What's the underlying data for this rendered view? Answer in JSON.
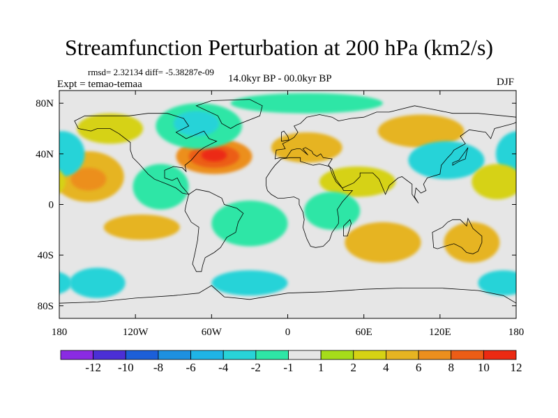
{
  "colors": {
    "background": "#ffffff",
    "map_neutral": "#e6e6e6",
    "coast": "#000000",
    "palette": [
      "#8a2be2",
      "#4b2fd6",
      "#1c5fd8",
      "#1e90e0",
      "#1fb4e6",
      "#28d3d8",
      "#2ee6a6",
      "#e6e6e6",
      "#a6dc1a",
      "#d6d214",
      "#e6b422",
      "#ec8f1d",
      "#ec5d16",
      "#ec2a12"
    ]
  },
  "chart_data": {
    "type": "heatmap",
    "title": "Streamfunction Perturbation at 200 hPa (km2/s)",
    "stats": "rmsd= 2.32134 diff= -5.38287e-09",
    "left_label": "Expt = temao-temaa",
    "center_label": "14.0kyr BP - 00.0kyr BP",
    "right_label": "DJF",
    "x_ticks": [
      "180",
      "120W",
      "60W",
      "0",
      "60E",
      "120E",
      "180"
    ],
    "x_tick_lon": [
      -180,
      -120,
      -60,
      0,
      60,
      120,
      180
    ],
    "y_ticks": [
      "80N",
      "40N",
      "0",
      "40S",
      "80S"
    ],
    "y_tick_lat": [
      80,
      40,
      0,
      -40,
      -80
    ],
    "xlim": [
      -180,
      180
    ],
    "ylim": [
      -90,
      90
    ],
    "colorbar": {
      "levels": [
        "-12",
        "-10",
        "-8",
        "-6",
        "-4",
        "-2",
        "-1",
        "1",
        "2",
        "4",
        "6",
        "8",
        "10",
        "12"
      ],
      "bins": 14
    },
    "anomalies": [
      {
        "name": "n-atlantic-high",
        "lon": -58,
        "lat": 38,
        "rx": 30,
        "ry": 14,
        "level": 11
      },
      {
        "name": "n-atlantic-high-mid",
        "lon": -58,
        "lat": 38,
        "rx": 20,
        "ry": 9,
        "level": 12
      },
      {
        "name": "n-atlantic-high-core",
        "lon": -58,
        "lat": 39,
        "rx": 10,
        "ry": 5,
        "level": 13
      },
      {
        "name": "central-pacific-high",
        "lon": -157,
        "lat": 22,
        "rx": 28,
        "ry": 20,
        "level": 10
      },
      {
        "name": "central-pacific-high-core",
        "lon": -157,
        "lat": 20,
        "rx": 14,
        "ry": 9,
        "level": 11
      },
      {
        "name": "alaska-high",
        "lon": -140,
        "lat": 60,
        "rx": 26,
        "ry": 12,
        "level": 9
      },
      {
        "name": "greenland-low",
        "lon": -70,
        "lat": 62,
        "rx": 34,
        "ry": 18,
        "level": 6
      },
      {
        "name": "greenland-low-core",
        "lon": -72,
        "lat": 64,
        "rx": 18,
        "ry": 10,
        "level": 5
      },
      {
        "name": "us-low",
        "lon": -100,
        "lat": 14,
        "rx": 22,
        "ry": 18,
        "level": 6
      },
      {
        "name": "west-pacific-low",
        "lon": -178,
        "lat": 40,
        "rx": 18,
        "ry": 18,
        "level": 5
      },
      {
        "name": "europe-high",
        "lon": 15,
        "lat": 45,
        "rx": 28,
        "ry": 12,
        "level": 10
      },
      {
        "name": "siberia-high",
        "lon": 105,
        "lat": 58,
        "rx": 34,
        "ry": 13,
        "level": 10
      },
      {
        "name": "east-asia-low",
        "lon": 125,
        "lat": 35,
        "rx": 30,
        "ry": 15,
        "level": 5
      },
      {
        "name": "north-pacific-high",
        "lon": 165,
        "lat": 18,
        "rx": 20,
        "ry": 14,
        "level": 9
      },
      {
        "name": "arctic-low",
        "lon": 15,
        "lat": 80,
        "rx": 60,
        "ry": 8,
        "level": 6
      },
      {
        "name": "arabia-high",
        "lon": 55,
        "lat": 18,
        "rx": 30,
        "ry": 12,
        "level": 9
      },
      {
        "name": "africa-low",
        "lon": 35,
        "lat": -5,
        "rx": 22,
        "ry": 15,
        "level": 6
      },
      {
        "name": "east-pacific-high",
        "lon": -115,
        "lat": -18,
        "rx": 30,
        "ry": 10,
        "level": 10
      },
      {
        "name": "south-indian-high",
        "lon": 75,
        "lat": -30,
        "rx": 30,
        "ry": 16,
        "level": 10
      },
      {
        "name": "australia-high",
        "lon": 145,
        "lat": -30,
        "rx": 22,
        "ry": 16,
        "level": 10
      },
      {
        "name": "south-atlantic-low",
        "lon": -30,
        "lat": -15,
        "rx": 30,
        "ry": 18,
        "level": 6
      },
      {
        "name": "southern-ocean-low",
        "lon": -150,
        "lat": -62,
        "rx": 22,
        "ry": 12,
        "level": 5
      },
      {
        "name": "southern-ocean-low2",
        "lon": -30,
        "lat": -62,
        "rx": 30,
        "ry": 10,
        "level": 5
      },
      {
        "name": "southern-ocean-low3",
        "lon": 170,
        "lat": -62,
        "rx": 20,
        "ry": 10,
        "level": 5
      }
    ]
  }
}
